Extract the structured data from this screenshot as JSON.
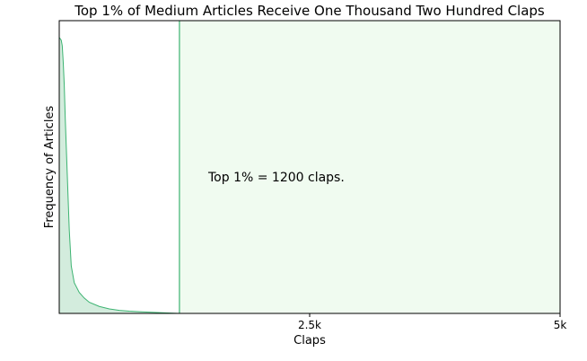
{
  "chart_data": {
    "type": "area",
    "title": "Top 1% of Medium Articles Receive One Thousand Two Hundred Claps",
    "xlabel": "Claps",
    "ylabel": "Frequency of Articles",
    "xlim": [
      0,
      5000
    ],
    "ylim": [
      0,
      1.05
    ],
    "xticks": [
      {
        "value": 2500,
        "label": "2.5k"
      },
      {
        "value": 5000,
        "label": "5k"
      }
    ],
    "y_ticks_shown": false,
    "grid": false,
    "series": [
      {
        "x": [
          0,
          20,
          30,
          40,
          50,
          60,
          80,
          100,
          120,
          150,
          200,
          250,
          300,
          400,
          500,
          600,
          700,
          800,
          1000,
          1200
        ],
        "values": [
          0.99,
          0.98,
          0.96,
          0.9,
          0.82,
          0.7,
          0.5,
          0.3,
          0.17,
          0.11,
          0.075,
          0.055,
          0.04,
          0.025,
          0.016,
          0.011,
          0.008,
          0.006,
          0.003,
          0.0
        ]
      }
    ],
    "threshold": {
      "x": 1200,
      "label": "Top 1% = 1200 claps."
    },
    "colors": {
      "line": "#3cb371",
      "fill": "#d3ecdd",
      "shade": "#f0fbf0",
      "threshold": "#3cb371",
      "axis": "#000000"
    }
  }
}
